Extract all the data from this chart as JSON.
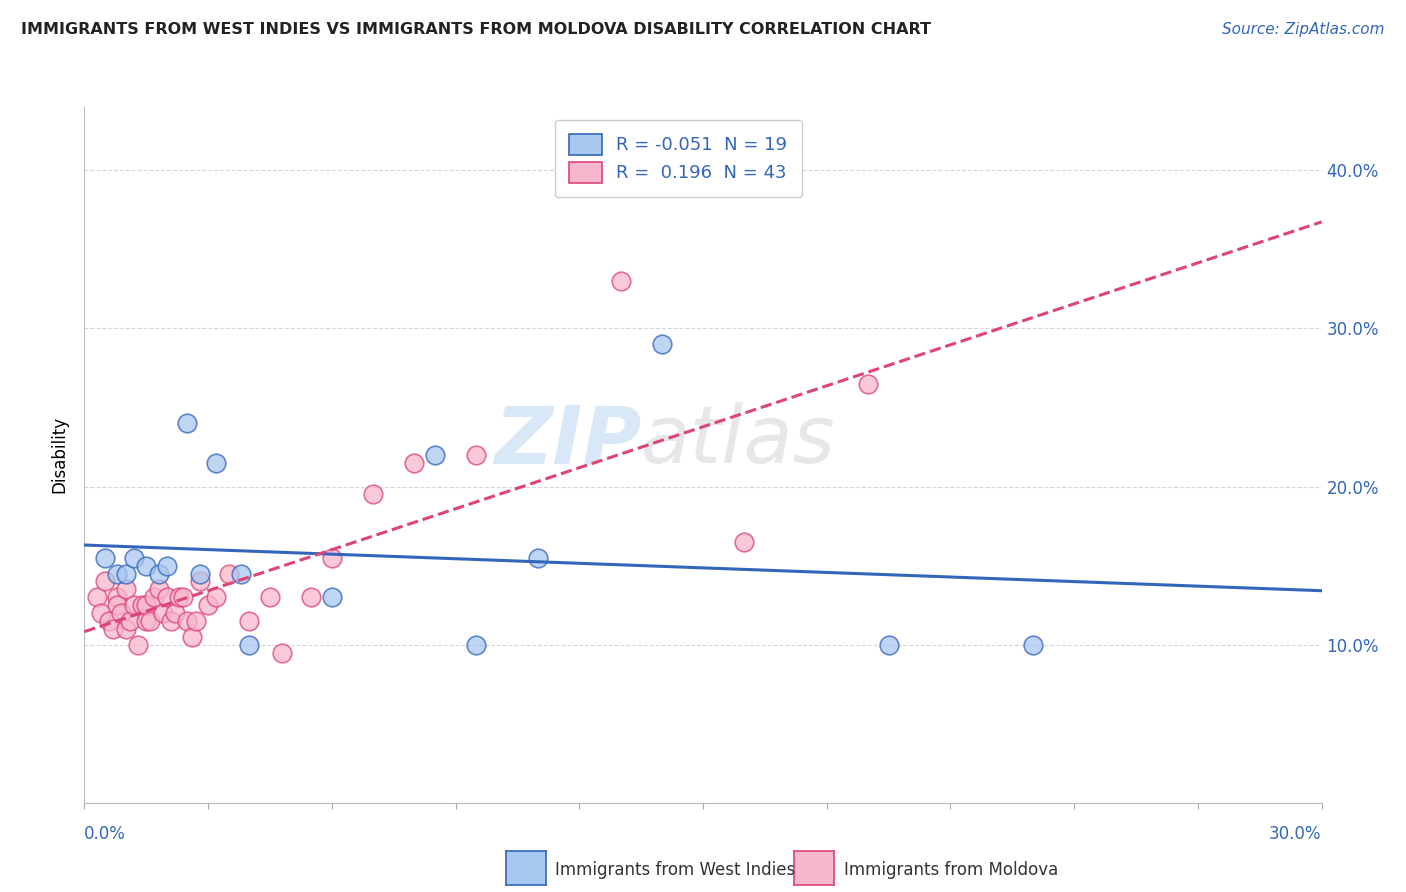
{
  "title": "IMMIGRANTS FROM WEST INDIES VS IMMIGRANTS FROM MOLDOVA DISABILITY CORRELATION CHART",
  "source_text": "Source: ZipAtlas.com",
  "ylabel": "Disability",
  "xlim": [
    0.0,
    0.3
  ],
  "ylim": [
    0.0,
    0.44
  ],
  "r_blue": -0.051,
  "n_blue": 19,
  "r_pink": 0.196,
  "n_pink": 43,
  "legend_label_blue": "Immigrants from West Indies",
  "legend_label_pink": "Immigrants from Moldova",
  "color_blue": "#A8C8F0",
  "color_pink": "#F8B8CC",
  "line_color_blue": "#3366BB",
  "line_color_pink": "#DD4477",
  "blue_points_x": [
    0.005,
    0.008,
    0.01,
    0.012,
    0.015,
    0.018,
    0.02,
    0.025,
    0.028,
    0.032,
    0.038,
    0.04,
    0.06,
    0.085,
    0.095,
    0.11,
    0.14,
    0.195,
    0.23
  ],
  "blue_points_y": [
    0.155,
    0.145,
    0.145,
    0.155,
    0.15,
    0.145,
    0.15,
    0.24,
    0.145,
    0.215,
    0.145,
    0.1,
    0.13,
    0.22,
    0.1,
    0.155,
    0.29,
    0.1,
    0.1
  ],
  "pink_points_x": [
    0.003,
    0.004,
    0.005,
    0.006,
    0.007,
    0.008,
    0.008,
    0.009,
    0.01,
    0.01,
    0.011,
    0.012,
    0.013,
    0.014,
    0.015,
    0.015,
    0.016,
    0.017,
    0.018,
    0.019,
    0.02,
    0.021,
    0.022,
    0.023,
    0.024,
    0.025,
    0.026,
    0.027,
    0.028,
    0.03,
    0.032,
    0.035,
    0.04,
    0.045,
    0.048,
    0.055,
    0.06,
    0.07,
    0.08,
    0.095,
    0.13,
    0.16,
    0.19
  ],
  "pink_points_y": [
    0.13,
    0.12,
    0.14,
    0.115,
    0.11,
    0.13,
    0.125,
    0.12,
    0.11,
    0.135,
    0.115,
    0.125,
    0.1,
    0.125,
    0.115,
    0.125,
    0.115,
    0.13,
    0.135,
    0.12,
    0.13,
    0.115,
    0.12,
    0.13,
    0.13,
    0.115,
    0.105,
    0.115,
    0.14,
    0.125,
    0.13,
    0.145,
    0.115,
    0.13,
    0.095,
    0.13,
    0.155,
    0.195,
    0.215,
    0.22,
    0.33,
    0.165,
    0.265
  ],
  "watermark_zip": "ZIP",
  "watermark_atlas": "atlas",
  "background_color": "#FFFFFF",
  "grid_color": "#CCCCCC",
  "ytick_values": [
    0.0,
    0.1,
    0.2,
    0.3,
    0.4
  ],
  "ytick_labels": [
    "",
    "10.0%",
    "20.0%",
    "30.0%",
    "40.0%"
  ]
}
